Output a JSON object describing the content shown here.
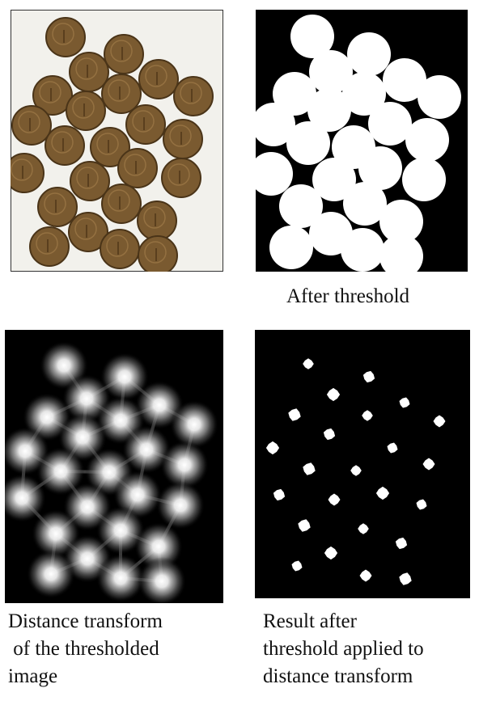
{
  "panels": {
    "original": {
      "caption": ""
    },
    "threshold": {
      "caption": "After threshold"
    },
    "distance": {
      "caption_lines": [
        "Distance transform",
        " of the thresholded",
        "image"
      ]
    },
    "result": {
      "caption_lines": [
        "Result after",
        "threshold applied to",
        "distance transform"
      ]
    }
  },
  "colors": {
    "coin_fill": "#7a5a30",
    "coin_edge": "#4a3418",
    "coin_highlight": "#a07a48",
    "paper": "#f2f1ec",
    "black": "#000000",
    "white": "#ffffff"
  }
}
